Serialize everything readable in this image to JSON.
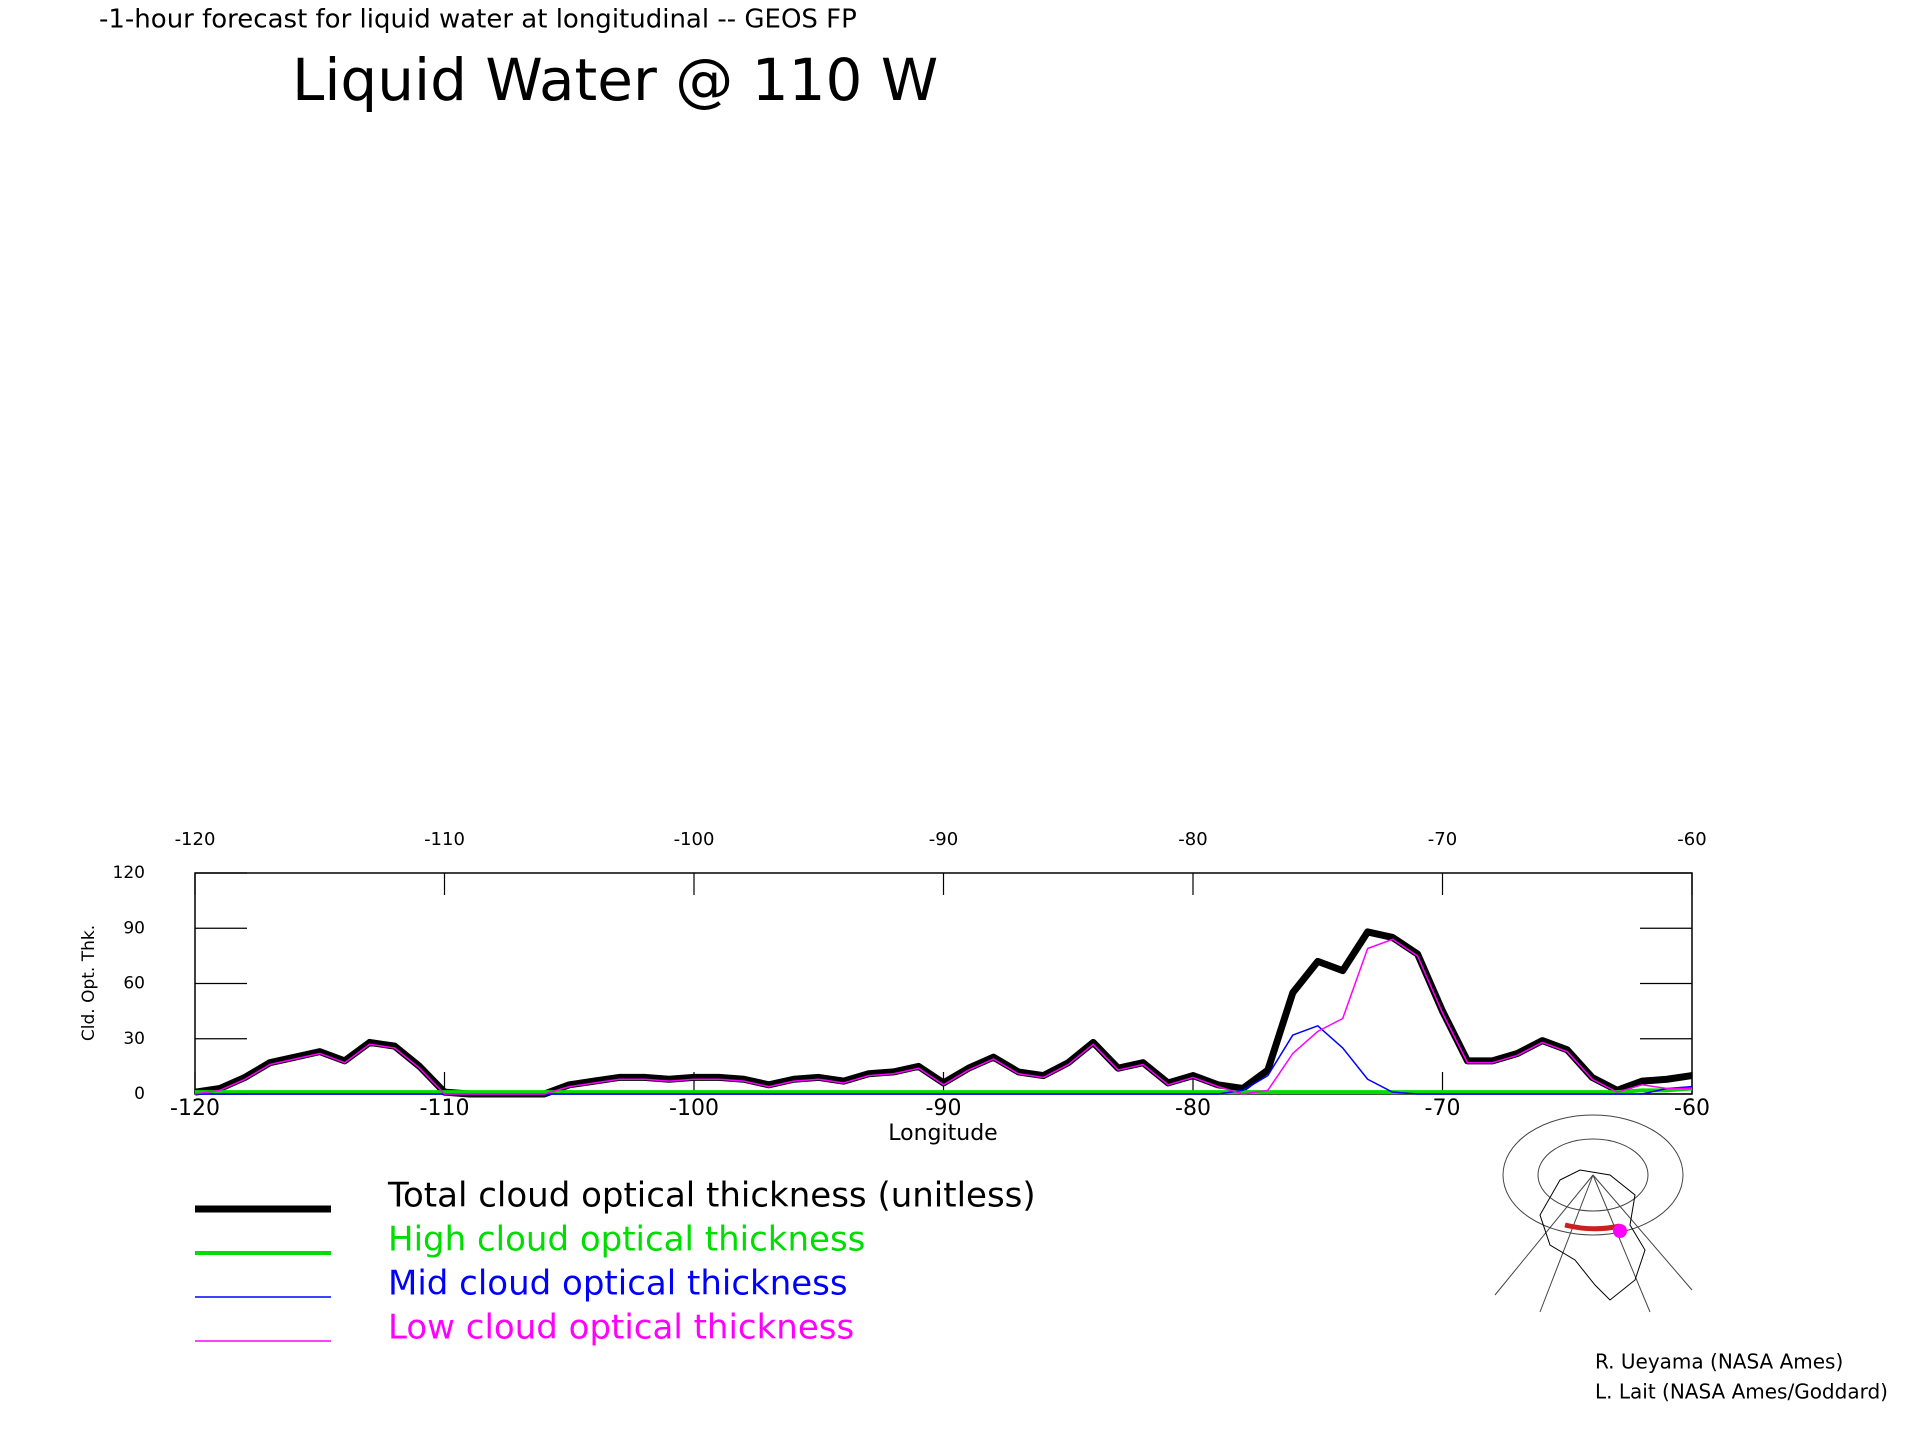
{
  "chart_data": {
    "type": "line",
    "subtitle": "-1-hour forecast for liquid water at longitudinal -- GEOS FP",
    "title": "Liquid Water @ 110 W",
    "x_label": "Longitude",
    "y_label": "Cld. Opt. Thk.",
    "x": [
      -120,
      -119,
      -118,
      -117,
      -116,
      -115,
      -114,
      -113,
      -112,
      -111,
      -110,
      -109,
      -108,
      -107,
      -106,
      -105,
      -104,
      -103,
      -102,
      -101,
      -100,
      -99,
      -98,
      -97,
      -96,
      -95,
      -94,
      -93,
      -92,
      -91,
      -90,
      -89,
      -88,
      -87,
      -86,
      -85,
      -84,
      -83,
      -82,
      -81,
      -80,
      -79,
      -78,
      -77,
      -76,
      -75,
      -74,
      -73,
      -72,
      -71,
      -70,
      -69,
      -68,
      -67,
      -66,
      -65,
      -64,
      -63,
      -62,
      -61,
      -60
    ],
    "xlim": [
      -120,
      -60
    ],
    "xticks": [
      -120,
      -110,
      -100,
      -90,
      -80,
      -70,
      -60
    ],
    "ylim": [
      0,
      120
    ],
    "yticks": [
      0,
      30,
      60,
      90,
      120
    ],
    "series": [
      {
        "name": "Total cloud optical thickness (unitless)",
        "color": "#000000",
        "width": 7,
        "values": [
          1,
          3,
          9,
          17,
          20,
          23,
          18,
          28,
          26,
          15,
          1,
          0,
          0,
          0,
          0,
          5,
          7,
          9,
          9,
          8,
          9,
          9,
          8,
          5,
          8,
          9,
          7,
          11,
          12,
          15,
          6,
          14,
          20,
          12,
          10,
          17,
          28,
          14,
          17,
          6,
          10,
          5,
          3,
          13,
          55,
          72,
          67,
          88,
          85,
          76,
          45,
          18,
          18,
          22,
          29,
          24,
          9,
          2,
          7,
          8,
          10
        ]
      },
      {
        "name": "High cloud optical thickness",
        "color": "#00dd00",
        "width": 4,
        "values": [
          1,
          1,
          1,
          1,
          1,
          1,
          1,
          1,
          1,
          1,
          1,
          1,
          1,
          1,
          1,
          1,
          1,
          1,
          1,
          1,
          1,
          1,
          1,
          1,
          1,
          1,
          1,
          1,
          1,
          1,
          1,
          1,
          1,
          1,
          1,
          1,
          1,
          1,
          1,
          1,
          1,
          1,
          1,
          1,
          1,
          1,
          1,
          1,
          1,
          1,
          1,
          1,
          1,
          1,
          1,
          1,
          1,
          1,
          2,
          2,
          3
        ]
      },
      {
        "name": "Mid cloud optical thickness",
        "color": "#0000ff",
        "width": 1.5,
        "values": [
          0,
          0,
          0,
          0,
          0,
          0,
          0,
          0,
          0,
          0,
          0,
          0,
          0,
          0,
          0,
          0,
          0,
          0,
          0,
          0,
          0,
          0,
          0,
          0,
          0,
          0,
          0,
          0,
          0,
          0,
          0,
          0,
          0,
          0,
          0,
          0,
          0,
          0,
          0,
          0,
          0,
          0,
          2,
          10,
          32,
          37,
          25,
          8,
          1,
          0,
          0,
          0,
          0,
          0,
          0,
          0,
          0,
          0,
          0,
          3,
          4
        ]
      },
      {
        "name": "Low cloud optical thickness",
        "color": "#ff00ff",
        "width": 1.5,
        "values": [
          0,
          2,
          8,
          16,
          19,
          22,
          17,
          27,
          25,
          14,
          0,
          0,
          0,
          0,
          0,
          4,
          6,
          8,
          8,
          7,
          8,
          8,
          7,
          4,
          7,
          8,
          6,
          10,
          11,
          14,
          5,
          13,
          19,
          11,
          9,
          16,
          27,
          13,
          16,
          5,
          9,
          4,
          0,
          2,
          22,
          34,
          41,
          79,
          84,
          75,
          44,
          17,
          17,
          21,
          28,
          23,
          8,
          1,
          5,
          3,
          3
        ]
      }
    ],
    "credits": [
      "R. Ueyama (NASA Ames)",
      "L. Lait (NASA Ames/Goddard)"
    ]
  }
}
